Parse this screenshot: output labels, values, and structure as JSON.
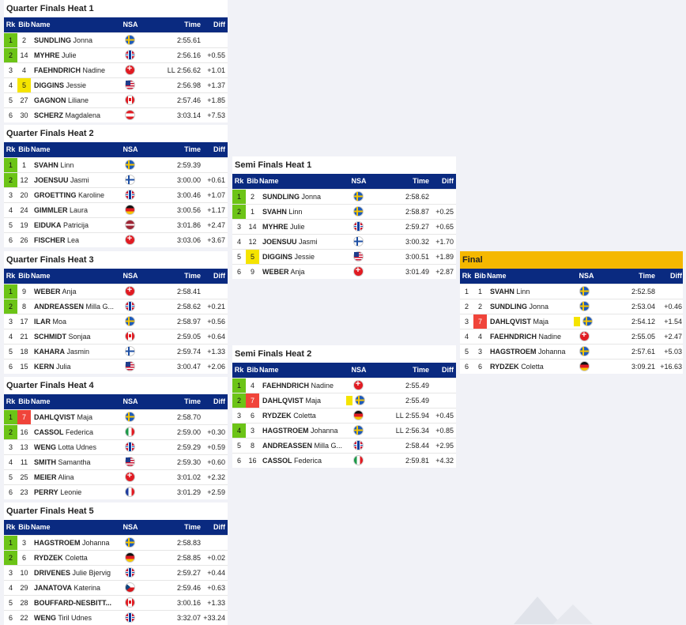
{
  "headers": {
    "rk": "Rk",
    "bib": "Bib",
    "name": "Name",
    "nsa": "NSA",
    "time": "Time",
    "diff": "Diff"
  },
  "heats": [
    {
      "title": "Quarter Finals Heat 1",
      "rows": [
        {
          "rk": "1",
          "q": true,
          "bib": "2",
          "bibc": "",
          "last": "SUNDLING",
          "first": "Jonna",
          "nsa": "SWE",
          "time": "2:55.61",
          "diff": ""
        },
        {
          "rk": "2",
          "q": true,
          "bib": "14",
          "bibc": "",
          "last": "MYHRE",
          "first": "Julie",
          "nsa": "NOR",
          "time": "2:56.16",
          "diff": "+0.55"
        },
        {
          "rk": "3",
          "q": false,
          "bib": "4",
          "bibc": "",
          "last": "FAEHNDRICH",
          "first": "Nadine",
          "nsa": "SUI",
          "time": "LL 2:56.62",
          "diff": "+1.01"
        },
        {
          "rk": "4",
          "q": false,
          "bib": "5",
          "bibc": "yellow",
          "last": "DIGGINS",
          "first": "Jessie",
          "nsa": "USA",
          "time": "2:56.98",
          "diff": "+1.37"
        },
        {
          "rk": "5",
          "q": false,
          "bib": "27",
          "bibc": "",
          "last": "GAGNON",
          "first": "Liliane",
          "nsa": "CAN",
          "time": "2:57.46",
          "diff": "+1.85"
        },
        {
          "rk": "6",
          "q": false,
          "bib": "30",
          "bibc": "",
          "last": "SCHERZ",
          "first": "Magdalena",
          "nsa": "AUT",
          "time": "3:03.14",
          "diff": "+7.53"
        }
      ]
    },
    {
      "title": "Quarter Finals Heat 2",
      "rows": [
        {
          "rk": "1",
          "q": true,
          "bib": "1",
          "bibc": "",
          "last": "SVAHN",
          "first": "Linn",
          "nsa": "SWE",
          "time": "2:59.39",
          "diff": ""
        },
        {
          "rk": "2",
          "q": true,
          "bib": "12",
          "bibc": "",
          "last": "JOENSUU",
          "first": "Jasmi",
          "nsa": "FIN",
          "time": "3:00.00",
          "diff": "+0.61"
        },
        {
          "rk": "3",
          "q": false,
          "bib": "20",
          "bibc": "",
          "last": "GROETTING",
          "first": "Karoline",
          "nsa": "NOR",
          "time": "3:00.46",
          "diff": "+1.07"
        },
        {
          "rk": "4",
          "q": false,
          "bib": "24",
          "bibc": "",
          "last": "GIMMLER",
          "first": "Laura",
          "nsa": "GER",
          "time": "3:00.56",
          "diff": "+1.17"
        },
        {
          "rk": "5",
          "q": false,
          "bib": "19",
          "bibc": "",
          "last": "EIDUKA",
          "first": "Patricija",
          "nsa": "LAT",
          "time": "3:01.86",
          "diff": "+2.47"
        },
        {
          "rk": "6",
          "q": false,
          "bib": "26",
          "bibc": "",
          "last": "FISCHER",
          "first": "Lea",
          "nsa": "SUI",
          "time": "3:03.06",
          "diff": "+3.67"
        }
      ]
    },
    {
      "title": "Quarter Finals Heat 3",
      "rows": [
        {
          "rk": "1",
          "q": true,
          "bib": "9",
          "bibc": "",
          "last": "WEBER",
          "first": "Anja",
          "nsa": "SUI",
          "time": "2:58.41",
          "diff": ""
        },
        {
          "rk": "2",
          "q": true,
          "bib": "8",
          "bibc": "",
          "last": "ANDREASSEN",
          "first": "Milla G...",
          "nsa": "NOR",
          "time": "2:58.62",
          "diff": "+0.21"
        },
        {
          "rk": "3",
          "q": false,
          "bib": "17",
          "bibc": "",
          "last": "ILAR",
          "first": "Moa",
          "nsa": "SWE",
          "time": "2:58.97",
          "diff": "+0.56"
        },
        {
          "rk": "4",
          "q": false,
          "bib": "21",
          "bibc": "",
          "last": "SCHMIDT",
          "first": "Sonjaa",
          "nsa": "CAN",
          "time": "2:59.05",
          "diff": "+0.64"
        },
        {
          "rk": "5",
          "q": false,
          "bib": "18",
          "bibc": "",
          "last": "KAHARA",
          "first": "Jasmin",
          "nsa": "FIN",
          "time": "2:59.74",
          "diff": "+1.33"
        },
        {
          "rk": "6",
          "q": false,
          "bib": "15",
          "bibc": "",
          "last": "KERN",
          "first": "Julia",
          "nsa": "USA",
          "time": "3:00.47",
          "diff": "+2.06"
        }
      ]
    },
    {
      "title": "Quarter Finals Heat 4",
      "rows": [
        {
          "rk": "1",
          "q": true,
          "bib": "7",
          "bibc": "red",
          "last": "DAHLQVIST",
          "first": "Maja",
          "nsa": "SWE",
          "time": "2:58.70",
          "diff": ""
        },
        {
          "rk": "2",
          "q": true,
          "bib": "16",
          "bibc": "",
          "last": "CASSOL",
          "first": "Federica",
          "nsa": "ITA",
          "time": "2:59.00",
          "diff": "+0.30"
        },
        {
          "rk": "3",
          "q": false,
          "bib": "13",
          "bibc": "",
          "last": "WENG",
          "first": "Lotta Udnes",
          "nsa": "NOR",
          "time": "2:59.29",
          "diff": "+0.59"
        },
        {
          "rk": "4",
          "q": false,
          "bib": "11",
          "bibc": "",
          "last": "SMITH",
          "first": "Samantha",
          "nsa": "USA",
          "time": "2:59.30",
          "diff": "+0.60"
        },
        {
          "rk": "5",
          "q": false,
          "bib": "25",
          "bibc": "",
          "last": "MEIER",
          "first": "Alina",
          "nsa": "SUI",
          "time": "3:01.02",
          "diff": "+2.32"
        },
        {
          "rk": "6",
          "q": false,
          "bib": "23",
          "bibc": "",
          "last": "PERRY",
          "first": "Leonie",
          "nsa": "FRA",
          "time": "3:01.29",
          "diff": "+2.59"
        }
      ]
    },
    {
      "title": "Quarter Finals Heat 5",
      "rows": [
        {
          "rk": "1",
          "q": true,
          "bib": "3",
          "bibc": "",
          "last": "HAGSTROEM",
          "first": "Johanna",
          "nsa": "SWE",
          "time": "2:58.83",
          "diff": ""
        },
        {
          "rk": "2",
          "q": true,
          "bib": "6",
          "bibc": "",
          "last": "RYDZEK",
          "first": "Coletta",
          "nsa": "GER",
          "time": "2:58.85",
          "diff": "+0.02"
        },
        {
          "rk": "3",
          "q": false,
          "bib": "10",
          "bibc": "",
          "last": "DRIVENES",
          "first": "Julie Bjervig",
          "nsa": "NOR",
          "time": "2:59.27",
          "diff": "+0.44"
        },
        {
          "rk": "4",
          "q": false,
          "bib": "29",
          "bibc": "",
          "last": "JANATOVA",
          "first": "Katerina",
          "nsa": "CZE",
          "time": "2:59.46",
          "diff": "+0.63"
        },
        {
          "rk": "5",
          "q": false,
          "bib": "28",
          "bibc": "",
          "last": "BOUFFARD-NESBITT...",
          "first": "",
          "nsa": "CAN",
          "time": "3:00.16",
          "diff": "+1.33"
        },
        {
          "rk": "6",
          "q": false,
          "bib": "22",
          "bibc": "",
          "last": "WENG",
          "first": "Tiril Udnes",
          "nsa": "NOR",
          "time": "3:32.07",
          "diff": "+33.24"
        }
      ]
    },
    {
      "title": "Semi Finals Heat 1",
      "rows": [
        {
          "rk": "1",
          "q": true,
          "bib": "2",
          "bibc": "",
          "last": "SUNDLING",
          "first": "Jonna",
          "nsa": "SWE",
          "time": "2:58.62",
          "diff": ""
        },
        {
          "rk": "2",
          "q": true,
          "bib": "1",
          "bibc": "",
          "last": "SVAHN",
          "first": "Linn",
          "nsa": "SWE",
          "time": "2:58.87",
          "diff": "+0.25"
        },
        {
          "rk": "3",
          "q": false,
          "bib": "14",
          "bibc": "",
          "last": "MYHRE",
          "first": "Julie",
          "nsa": "NOR",
          "time": "2:59.27",
          "diff": "+0.65"
        },
        {
          "rk": "4",
          "q": false,
          "bib": "12",
          "bibc": "",
          "last": "JOENSUU",
          "first": "Jasmi",
          "nsa": "FIN",
          "time": "3:00.32",
          "diff": "+1.70"
        },
        {
          "rk": "5",
          "q": false,
          "bib": "5",
          "bibc": "yellow",
          "last": "DIGGINS",
          "first": "Jessie",
          "nsa": "USA",
          "time": "3:00.51",
          "diff": "+1.89"
        },
        {
          "rk": "6",
          "q": false,
          "bib": "9",
          "bibc": "",
          "last": "WEBER",
          "first": "Anja",
          "nsa": "SUI",
          "time": "3:01.49",
          "diff": "+2.87"
        }
      ]
    },
    {
      "title": "Semi Finals Heat 2",
      "rows": [
        {
          "rk": "1",
          "q": true,
          "bib": "4",
          "bibc": "",
          "last": "FAEHNDRICH",
          "first": "Nadine",
          "nsa": "SUI",
          "time": "2:55.49",
          "diff": ""
        },
        {
          "rk": "2",
          "q": true,
          "bib": "7",
          "bibc": "red",
          "last": "DAHLQVIST",
          "first": "Maja",
          "nsa": "SWE",
          "time": "2:55.49",
          "diff": "",
          "card": true
        },
        {
          "rk": "3",
          "q": false,
          "bib": "6",
          "bibc": "",
          "last": "RYDZEK",
          "first": "Coletta",
          "nsa": "GER",
          "time": "LL 2:55.94",
          "diff": "+0.45"
        },
        {
          "rk": "4",
          "q": true,
          "bib": "3",
          "bibc": "",
          "last": "HAGSTROEM",
          "first": "Johanna",
          "nsa": "SWE",
          "time": "LL 2:56.34",
          "diff": "+0.85"
        },
        {
          "rk": "5",
          "q": false,
          "bib": "8",
          "bibc": "",
          "last": "ANDREASSEN",
          "first": "Milla G...",
          "nsa": "NOR",
          "time": "2:58.44",
          "diff": "+2.95"
        },
        {
          "rk": "6",
          "q": false,
          "bib": "16",
          "bibc": "",
          "last": "CASSOL",
          "first": "Federica",
          "nsa": "ITA",
          "time": "2:59.81",
          "diff": "+4.32"
        }
      ]
    },
    {
      "title": "Final",
      "final": true,
      "rows": [
        {
          "rk": "1",
          "q": false,
          "bib": "1",
          "bibc": "",
          "last": "SVAHN",
          "first": "Linn",
          "nsa": "SWE",
          "time": "2:52.58",
          "diff": ""
        },
        {
          "rk": "2",
          "q": false,
          "bib": "2",
          "bibc": "",
          "last": "SUNDLING",
          "first": "Jonna",
          "nsa": "SWE",
          "time": "2:53.04",
          "diff": "+0.46"
        },
        {
          "rk": "3",
          "q": false,
          "bib": "7",
          "bibc": "red",
          "last": "DAHLQVIST",
          "first": "Maja",
          "nsa": "SWE",
          "time": "2:54.12",
          "diff": "+1.54",
          "card": true
        },
        {
          "rk": "4",
          "q": false,
          "bib": "4",
          "bibc": "",
          "last": "FAEHNDRICH",
          "first": "Nadine",
          "nsa": "SUI",
          "time": "2:55.05",
          "diff": "+2.47"
        },
        {
          "rk": "5",
          "q": false,
          "bib": "3",
          "bibc": "",
          "last": "HAGSTROEM",
          "first": "Johanna",
          "nsa": "SWE",
          "time": "2:57.61",
          "diff": "+5.03"
        },
        {
          "rk": "6",
          "q": false,
          "bib": "6",
          "bibc": "",
          "last": "RYDZEK",
          "first": "Coletta",
          "nsa": "GER",
          "time": "3:09.21",
          "diff": "+16.63"
        }
      ]
    }
  ]
}
